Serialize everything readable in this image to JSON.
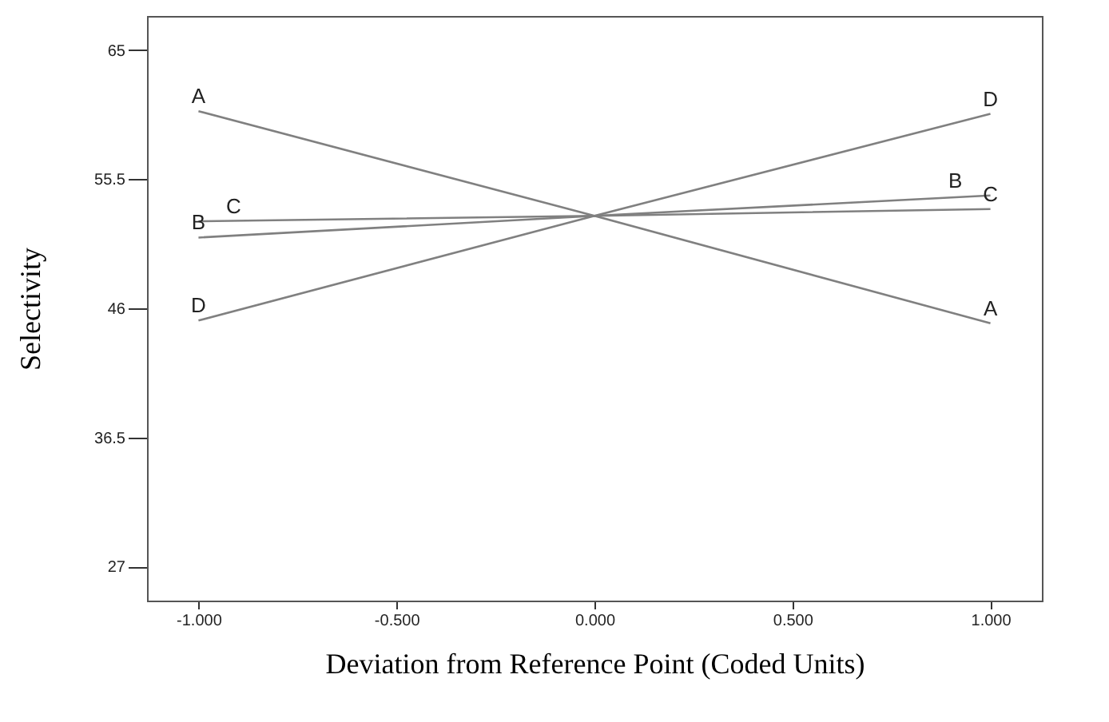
{
  "chart_data": {
    "type": "line",
    "xlabel": "Deviation from Reference Point (Coded Units)",
    "ylabel": "Selectivity",
    "x": [
      -1,
      0,
      1
    ],
    "series": [
      {
        "name": "A",
        "color": "#808080",
        "values": [
          60.5,
          52.8,
          44.9
        ]
      },
      {
        "name": "B",
        "color": "#808080",
        "values": [
          51.2,
          52.8,
          54.3
        ]
      },
      {
        "name": "C",
        "color": "#808080",
        "values": [
          52.4,
          52.8,
          53.3
        ]
      },
      {
        "name": "D",
        "color": "#808080",
        "values": [
          45.1,
          52.8,
          60.3
        ]
      }
    ],
    "xlim": [
      -1.13,
      1.13
    ],
    "ylim": [
      24.5,
      67.5
    ],
    "xticks": [
      {
        "value": -1,
        "label": "-1.000"
      },
      {
        "value": -0.5,
        "label": "-0.500"
      },
      {
        "value": 0,
        "label": "0.000"
      },
      {
        "value": 0.5,
        "label": "0.500"
      },
      {
        "value": 1,
        "label": "1.000"
      }
    ],
    "yticks": [
      27,
      36.5,
      46,
      55.5,
      65
    ],
    "grid": false,
    "marker": "none",
    "line_style": "solid"
  }
}
